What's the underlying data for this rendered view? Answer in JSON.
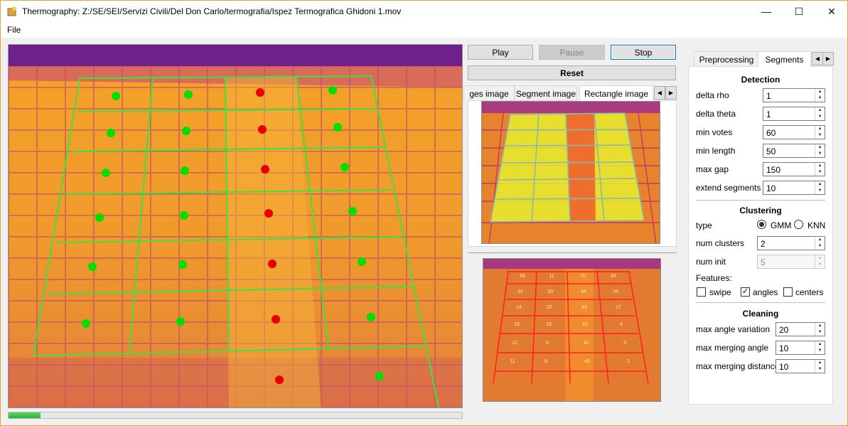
{
  "window": {
    "title": "Thermography: Z:/SE/SEI/Servizi Civili/Del Don Carlo/termografia/Ispez Termografica Ghidoni 1.mov",
    "minimize_glyph": "—",
    "maximize_glyph": "☐",
    "close_glyph": "✕"
  },
  "menu": {
    "file": "File"
  },
  "progress": {
    "value": 0.07
  },
  "controls": {
    "play": "Play",
    "pause": "Pause",
    "stop": "Stop",
    "reset": "Reset"
  },
  "image_tabs": {
    "tab1": "ges image",
    "tab2": "Segment image",
    "tab3": "Rectangle image",
    "left_arrow": "◀",
    "right_arrow": "▶"
  },
  "panel_numbers": [
    "68",
    "11",
    "70",
    "83",
    "31",
    "30",
    "44",
    "26",
    "14",
    "20",
    "43",
    "27",
    "13",
    "18",
    "42",
    "4",
    "12",
    "6",
    "41",
    "3",
    "11",
    "8",
    "40",
    "2"
  ],
  "settings_tabs": {
    "preprocessing": "Preprocessing",
    "segments": "Segments",
    "left_arrow": "◀",
    "right_arrow": "▶"
  },
  "detection": {
    "title": "Detection",
    "fields": [
      {
        "label": "delta rho",
        "value": "1"
      },
      {
        "label": "delta theta",
        "value": "1"
      },
      {
        "label": "min votes",
        "value": "60"
      },
      {
        "label": "min length",
        "value": "50"
      },
      {
        "label": "max gap",
        "value": "150"
      },
      {
        "label": "extend segments",
        "value": "10"
      }
    ]
  },
  "clustering": {
    "title": "Clustering",
    "type_label": "type",
    "gmm": "GMM",
    "knn": "KNN",
    "num_clusters_label": "num clusters",
    "num_clusters": "2",
    "num_init_label": "num init",
    "num_init": "5",
    "features_label": "Features:",
    "swipe": "swipe",
    "angles": "angles",
    "centers": "centers",
    "check_glyph": "✓"
  },
  "cleaning": {
    "title": "Cleaning",
    "fields": [
      {
        "label": "max angle variation",
        "value": "20"
      },
      {
        "label": "max merging angle",
        "value": "10"
      },
      {
        "label": "max merging distance",
        "value": "10"
      }
    ]
  },
  "colors": {
    "accent": "#0078d7",
    "ok_dot": "#00e000",
    "fault_dot": "#e60000",
    "grid": "#38e040"
  }
}
